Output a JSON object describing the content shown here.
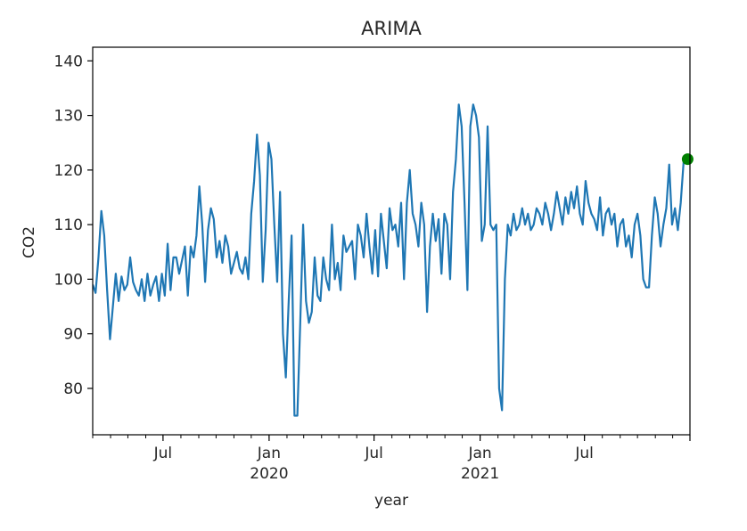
{
  "chart_data": {
    "type": "line",
    "title": "ARIMA",
    "xlabel": "year",
    "ylabel": "CO2",
    "x_range": [
      "2019-03-01",
      "2021-12-31"
    ],
    "ylim": [
      71.5,
      142.5
    ],
    "yticks": [
      80,
      90,
      100,
      110,
      120,
      130,
      140
    ],
    "xticks_major": [
      {
        "date": "2019-07-01",
        "label": "Jul",
        "sublabel": ""
      },
      {
        "date": "2020-01-01",
        "label": "Jan",
        "sublabel": "2020"
      },
      {
        "date": "2020-07-01",
        "label": "Jul",
        "sublabel": ""
      },
      {
        "date": "2021-01-01",
        "label": "Jan",
        "sublabel": "2021"
      },
      {
        "date": "2021-07-01",
        "label": "Jul",
        "sublabel": ""
      }
    ],
    "grid": false,
    "colors": {
      "series": "#1f77b4",
      "forecast": "#008000"
    },
    "series": [
      {
        "x": [
          "2019-03-01",
          "2019-03-06",
          "2019-03-11",
          "2019-03-16",
          "2019-03-21",
          "2019-03-26",
          "2019-03-31",
          "2019-04-05",
          "2019-04-10",
          "2019-04-15",
          "2019-04-20",
          "2019-04-25",
          "2019-04-30",
          "2019-05-05",
          "2019-05-10",
          "2019-05-15",
          "2019-05-20",
          "2019-05-25",
          "2019-05-30",
          "2019-06-04",
          "2019-06-09",
          "2019-06-14",
          "2019-06-19",
          "2019-06-24",
          "2019-06-29",
          "2019-07-04",
          "2019-07-09",
          "2019-07-14",
          "2019-07-19",
          "2019-07-24",
          "2019-07-29",
          "2019-08-03",
          "2019-08-08",
          "2019-08-13",
          "2019-08-18",
          "2019-08-23",
          "2019-08-28",
          "2019-09-02",
          "2019-09-07",
          "2019-09-12",
          "2019-09-17",
          "2019-09-22",
          "2019-09-27",
          "2019-10-02",
          "2019-10-07",
          "2019-10-12",
          "2019-10-17",
          "2019-10-22",
          "2019-10-27",
          "2019-11-01",
          "2019-11-06",
          "2019-11-11",
          "2019-11-16",
          "2019-11-21",
          "2019-11-26",
          "2019-12-01",
          "2019-12-06",
          "2019-12-11",
          "2019-12-16",
          "2019-12-21",
          "2019-12-26",
          "2019-12-31",
          "2020-01-05",
          "2020-01-10",
          "2020-01-15",
          "2020-01-20",
          "2020-01-25",
          "2020-01-30",
          "2020-02-04",
          "2020-02-09",
          "2020-02-14",
          "2020-02-19",
          "2020-02-24",
          "2020-02-29",
          "2020-03-05",
          "2020-03-10",
          "2020-03-15",
          "2020-03-20",
          "2020-03-25",
          "2020-03-30",
          "2020-04-04",
          "2020-04-09",
          "2020-04-14",
          "2020-04-19",
          "2020-04-24",
          "2020-04-29",
          "2020-05-04",
          "2020-05-09",
          "2020-05-14",
          "2020-05-19",
          "2020-05-24",
          "2020-05-29",
          "2020-06-03",
          "2020-06-08",
          "2020-06-13",
          "2020-06-18",
          "2020-06-23",
          "2020-06-28",
          "2020-07-03",
          "2020-07-08",
          "2020-07-13",
          "2020-07-18",
          "2020-07-23",
          "2020-07-28",
          "2020-08-02",
          "2020-08-07",
          "2020-08-12",
          "2020-08-17",
          "2020-08-22",
          "2020-08-27",
          "2020-09-01",
          "2020-09-06",
          "2020-09-11",
          "2020-09-16",
          "2020-09-21",
          "2020-09-26",
          "2020-10-01",
          "2020-10-06",
          "2020-10-11",
          "2020-10-16",
          "2020-10-21",
          "2020-10-26",
          "2020-10-31",
          "2020-11-05",
          "2020-11-10",
          "2020-11-15",
          "2020-11-20",
          "2020-11-25",
          "2020-11-30",
          "2020-12-05",
          "2020-12-10",
          "2020-12-15",
          "2020-12-20",
          "2020-12-25",
          "2020-12-30",
          "2021-01-04",
          "2021-01-09",
          "2021-01-14",
          "2021-01-19",
          "2021-01-24",
          "2021-01-29",
          "2021-02-03",
          "2021-02-08",
          "2021-02-13",
          "2021-02-18",
          "2021-02-23",
          "2021-02-28",
          "2021-03-05",
          "2021-03-10",
          "2021-03-15",
          "2021-03-20",
          "2021-03-25",
          "2021-03-30",
          "2021-04-04",
          "2021-04-09",
          "2021-04-14",
          "2021-04-19",
          "2021-04-24",
          "2021-04-29",
          "2021-05-04",
          "2021-05-09",
          "2021-05-14",
          "2021-05-19",
          "2021-05-24",
          "2021-05-29",
          "2021-06-03",
          "2021-06-08",
          "2021-06-13",
          "2021-06-18",
          "2021-06-23",
          "2021-06-28",
          "2021-07-03",
          "2021-07-08",
          "2021-07-13",
          "2021-07-18",
          "2021-07-23",
          "2021-07-28",
          "2021-08-02",
          "2021-08-07",
          "2021-08-12",
          "2021-08-17",
          "2021-08-22",
          "2021-08-27",
          "2021-09-01",
          "2021-09-06",
          "2021-09-11",
          "2021-09-16",
          "2021-09-21",
          "2021-09-26",
          "2021-10-01",
          "2021-10-06",
          "2021-10-11",
          "2021-10-16",
          "2021-10-21",
          "2021-10-26",
          "2021-10-31",
          "2021-11-05",
          "2021-11-10",
          "2021-11-15",
          "2021-11-20",
          "2021-11-25",
          "2021-11-30",
          "2021-12-05",
          "2021-12-10",
          "2021-12-15",
          "2021-12-20",
          "2021-12-26"
        ],
        "y": [
          99,
          97.5,
          104,
          112.5,
          108,
          98,
          89,
          95,
          101,
          96,
          100.5,
          98,
          99,
          104,
          99.5,
          98,
          97,
          100,
          96,
          101,
          97,
          99,
          100.5,
          96,
          101,
          97,
          106.5,
          98,
          104,
          104,
          101,
          103.5,
          106,
          97,
          106,
          104,
          108,
          117,
          110,
          99.5,
          109,
          113,
          111,
          104,
          107,
          103,
          108,
          106,
          101,
          103,
          105,
          102,
          101,
          104,
          100,
          112,
          118,
          126.5,
          119,
          99.5,
          109,
          125,
          122,
          110,
          99.5,
          116,
          90,
          82,
          96,
          108,
          75,
          75,
          92,
          110,
          96,
          92,
          94,
          104,
          97,
          96,
          104,
          100,
          98,
          110,
          100,
          103,
          98,
          108,
          105,
          106,
          107,
          100,
          110,
          108,
          104,
          112,
          106,
          101,
          109,
          100.5,
          112,
          107,
          102,
          113,
          109,
          110,
          106,
          114,
          100,
          114,
          120,
          112,
          110,
          106,
          114,
          110,
          94,
          106,
          112,
          107,
          111,
          101,
          112,
          110,
          100,
          116,
          122,
          132,
          128,
          114,
          98,
          128,
          132,
          130,
          126,
          107,
          110,
          128,
          110,
          109,
          110,
          80,
          76,
          100,
          110,
          108,
          112,
          109,
          110,
          113,
          110,
          112,
          109,
          110,
          113,
          112,
          110,
          114,
          112,
          109,
          112,
          116,
          113,
          110,
          115,
          112,
          116,
          113,
          117,
          112,
          110,
          118,
          114,
          112,
          111,
          109,
          115,
          108,
          112,
          113,
          110,
          112,
          106,
          110,
          111,
          106,
          108,
          104,
          110,
          112,
          108,
          100,
          98.5,
          98.5,
          108,
          115,
          112,
          106,
          110,
          113,
          121,
          110,
          113,
          109,
          114,
          121.5,
          122
        ],
        "name": ""
      }
    ],
    "forecast_point": {
      "x": "2021-12-27",
      "y": 122
    }
  }
}
